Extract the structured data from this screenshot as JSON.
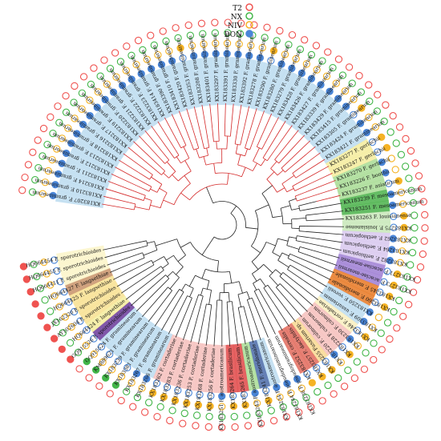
{
  "legend": {
    "items": [
      {
        "label": "T2",
        "color": "#ef5350"
      },
      {
        "label": "NX",
        "color": "#43b649"
      },
      {
        "label": "NIV",
        "color": "#f5b325"
      },
      {
        "label": "DON",
        "color": "#4a86d8"
      }
    ]
  },
  "colors": {
    "T2": "#ef5350",
    "NX": "#43b649",
    "NIV": "#f5b325",
    "DON": "#4a86d8",
    "red_branch": "#d42828",
    "black_branch": "#222222"
  },
  "taxa": [
    {
      "label": "KX183207 F. graminearum",
      "bg": "#bcdcf0",
      "branch": "red",
      "toxins": [
        0,
        0,
        0,
        1
      ]
    },
    {
      "label": "KX183210 F. graminearum",
      "bg": "#bcdcf0",
      "branch": "red",
      "toxins": [
        0,
        0,
        0,
        1
      ]
    },
    {
      "label": "KX183214 F. graminearum",
      "bg": "#bcdcf0",
      "branch": "red",
      "toxins": [
        0,
        0,
        0,
        1
      ]
    },
    {
      "label": "KX183211 F. graminearum",
      "bg": "#bcdcf0",
      "branch": "red",
      "toxins": [
        0,
        0,
        0,
        1
      ]
    },
    {
      "label": "KX183212 F. graminearum",
      "bg": "#bcdcf0",
      "branch": "red",
      "toxins": [
        0,
        0,
        0,
        1
      ]
    },
    {
      "label": "KX183213 F. graminearum",
      "bg": "#bcdcf0",
      "branch": "red",
      "toxins": [
        0,
        0,
        0,
        1
      ]
    },
    {
      "label": "KX183218 F. graminearum",
      "bg": "#bcdcf0",
      "branch": "red",
      "toxins": [
        0,
        0,
        0,
        1
      ]
    },
    {
      "label": "KX183216 F. graminearum",
      "bg": "#bcdcf0",
      "branch": "red",
      "toxins": [
        0,
        0,
        0,
        1
      ]
    },
    {
      "label": "KX183217 F. graminearum",
      "bg": "#bcdcf0",
      "branch": "red",
      "toxins": [
        0,
        0,
        0,
        1
      ]
    },
    {
      "label": "KX183219 F. graminearum",
      "bg": "#bcdcf0",
      "branch": "red",
      "toxins": [
        0,
        0,
        0,
        1
      ]
    },
    {
      "label": "KX183220 F. graminearum",
      "bg": "#bcdcf0",
      "branch": "red",
      "toxins": [
        0,
        0,
        0,
        1
      ]
    },
    {
      "label": "KX183221 F. graminearum",
      "bg": "#bcdcf0",
      "branch": "red",
      "toxins": [
        0,
        0,
        0,
        1
      ]
    },
    {
      "label": "KX183222 F. graminearum",
      "bg": "#bcdcf0",
      "branch": "red",
      "toxins": [
        0,
        0,
        0,
        1
      ]
    },
    {
      "label": "KX183223 F. graminearum",
      "bg": "#bcdcf0",
      "branch": "red",
      "toxins": [
        0,
        0,
        0,
        1
      ]
    },
    {
      "label": "KX183414 F. graminearum",
      "bg": "#bcdcf0",
      "branch": "red",
      "toxins": [
        0,
        0,
        0,
        1
      ]
    },
    {
      "label": "KX183390 F. graminearum",
      "bg": "#bcdcf0",
      "branch": "red",
      "toxins": [
        0,
        0,
        0,
        1
      ]
    },
    {
      "label": "KX183410 F. graminearum",
      "bg": "#bcdcf0",
      "branch": "red",
      "toxins": [
        0,
        0,
        0,
        1
      ]
    },
    {
      "label": "KX183420 F. graminearum",
      "bg": "#bcdcf0",
      "branch": "red",
      "toxins": [
        0,
        0,
        0,
        1
      ]
    },
    {
      "label": "KX183353 F. graminearum",
      "bg": "#bcdcf0",
      "branch": "red",
      "toxins": [
        0,
        0,
        1,
        0
      ]
    },
    {
      "label": "KX183208 F. graminearum",
      "bg": "#bcdcf0",
      "branch": "red",
      "toxins": [
        0,
        0,
        0,
        1
      ]
    },
    {
      "label": "KX183401 F. graminearum",
      "bg": "#bcdcf0",
      "branch": "red",
      "toxins": [
        0,
        0,
        0,
        1
      ]
    },
    {
      "label": "KX183297 F. graminearum",
      "bg": "#bcdcf0",
      "branch": "red",
      "toxins": [
        0,
        0,
        0,
        1
      ]
    },
    {
      "label": "KX183391 F. graminearum",
      "bg": "#bcdcf0",
      "branch": "red",
      "toxins": [
        0,
        0,
        0,
        1
      ]
    },
    {
      "label": "KX183330 F. graminearum",
      "bg": "#bcdcf0",
      "branch": "red",
      "toxins": [
        0,
        0,
        0,
        1
      ]
    },
    {
      "label": "KX183392 F. graminearum",
      "bg": "#bcdcf0",
      "branch": "red",
      "toxins": [
        0,
        0,
        0,
        1
      ]
    },
    {
      "label": "KX183278 F. graminearum",
      "bg": "#bcdcf0",
      "branch": "red",
      "toxins": [
        0,
        0,
        0,
        1
      ]
    },
    {
      "label": "KX183290 F. graminearum",
      "bg": "#bcdcf0",
      "branch": "red",
      "toxins": [
        0,
        0,
        1,
        0
      ]
    },
    {
      "label": "KX183280 F. graminearum",
      "bg": "#bcdcf0",
      "branch": "red",
      "toxins": [
        0,
        0,
        0,
        1
      ]
    },
    {
      "label": "KX183279 F. graminearum",
      "bg": "#bcdcf0",
      "branch": "red",
      "toxins": [
        0,
        0,
        0,
        1
      ]
    },
    {
      "label": "KX183428 F. graminearum",
      "bg": "#bcdcf0",
      "branch": "red",
      "toxins": [
        0,
        0,
        0,
        1
      ]
    },
    {
      "label": "KX183426 F. graminearum",
      "bg": "#bcdcf0",
      "branch": "red",
      "toxins": [
        0,
        0,
        0,
        1
      ]
    },
    {
      "label": "KX183427 F. graminearum",
      "bg": "#bcdcf0",
      "branch": "red",
      "toxins": [
        0,
        0,
        0,
        1
      ]
    },
    {
      "label": "KX183339 F. graminearum",
      "bg": "#bcdcf0",
      "branch": "red",
      "toxins": [
        0,
        0,
        0,
        1
      ]
    },
    {
      "label": "KX183429 F. graminearum",
      "bg": "#bcdcf0",
      "branch": "red",
      "toxins": [
        0,
        0,
        0,
        1
      ]
    },
    {
      "label": "KX183415 F. graminearum",
      "bg": "#bcdcf0",
      "branch": "red",
      "toxins": [
        0,
        0,
        0,
        1
      ]
    },
    {
      "label": "KX183305 F. graminearum",
      "bg": "#bcdcf0",
      "branch": "red",
      "toxins": [
        0,
        0,
        1,
        0
      ]
    },
    {
      "label": "KX183424 F. graminearum",
      "bg": "#bcdcf0",
      "branch": "red",
      "toxins": [
        0,
        0,
        0,
        1
      ]
    },
    {
      "label": "KX183421 F. graminearum",
      "bg": "#bcdcf0",
      "branch": "red",
      "toxins": [
        0,
        0,
        0,
        1
      ]
    },
    {
      "label": "KX183277 F. gerlachii",
      "bg": "#f4ec9c",
      "branch": "red",
      "toxins": [
        0,
        0,
        1,
        0
      ]
    },
    {
      "label": "KX183247 F. gerlachii",
      "bg": "#f4ec9c",
      "branch": "red",
      "toxins": [
        0,
        0,
        1,
        0
      ]
    },
    {
      "label": "KX183270 F. gerlachii",
      "bg": "#a8dc94",
      "branch": "red",
      "toxins": [
        0,
        0,
        0,
        1
      ]
    },
    {
      "label": "KX183226 F. boothii",
      "bg": "#a8dc94",
      "branch": "red",
      "toxins": [
        0,
        0,
        0,
        1
      ]
    },
    {
      "label": "KX183237 F. asiaticum",
      "bg": "#a8dc94",
      "branch": "red",
      "toxins": [
        0,
        0,
        1,
        0
      ]
    },
    {
      "label": "KX183239 F. mesoamericanum",
      "bg": "#4ab24a",
      "branch": "black",
      "toxins": [
        0,
        0,
        0,
        1
      ]
    },
    {
      "label": "KX183251 F. mesoamericanum",
      "bg": "#4ab24a",
      "branch": "black",
      "toxins": [
        0,
        0,
        0,
        1
      ]
    },
    {
      "label": "KX183263 F. louisianense",
      "bg": "#c8e8b8",
      "branch": "black",
      "toxins": [
        0,
        0,
        1,
        0
      ]
    },
    {
      "label": "KX183275 F. louisianense",
      "bg": "#c8e8b8",
      "branch": "black",
      "toxins": [
        0,
        0,
        1,
        0
      ]
    },
    {
      "label": "KX183262 F. aethiopicum",
      "bg": "#d8c8ee",
      "branch": "black",
      "toxins": [
        0,
        0,
        0,
        1
      ]
    },
    {
      "label": "KX183264 F. aethiopicum",
      "bg": "#d8c8ee",
      "branch": "black",
      "toxins": [
        0,
        0,
        0,
        1
      ]
    },
    {
      "label": "KX183282 F. aethiopicum",
      "bg": "#d8c8ee",
      "branch": "black",
      "toxins": [
        0,
        0,
        0,
        1
      ]
    },
    {
      "label": "KX183271 F. acaciae-mearnsii",
      "bg": "#9e7ed4",
      "branch": "black",
      "toxins": [
        0,
        0,
        1,
        0
      ]
    },
    {
      "label": "KX183273 F. acaciae-mearnsii",
      "bg": "#9e7ed4",
      "branch": "black",
      "toxins": [
        0,
        0,
        1,
        0
      ]
    },
    {
      "label": "KX183245 F. meridionale",
      "bg": "#e87822",
      "branch": "black",
      "toxins": [
        0,
        0,
        1,
        0
      ]
    },
    {
      "label": "KX183260 F. meridionale",
      "bg": "#e87822",
      "branch": "black",
      "toxins": [
        0,
        0,
        1,
        0
      ]
    },
    {
      "label": "KX183250 F. vorosii",
      "bg": "#bcdcf0",
      "branch": "black",
      "toxins": [
        0,
        0,
        0,
        1
      ]
    },
    {
      "label": "KX183309 F. ussurianum",
      "bg": "#bcdcf0",
      "branch": "black",
      "toxins": [
        0,
        0,
        0,
        1
      ]
    },
    {
      "label": "KX183246 F. cortaderiae",
      "bg": "#f9efbe",
      "branch": "black",
      "toxins": [
        0,
        0,
        1,
        0
      ]
    },
    {
      "label": "KX183230 F. culmorum",
      "bg": "#f6c0bc",
      "branch": "black",
      "toxins": [
        0,
        0,
        0,
        1
      ]
    },
    {
      "label": "KX183228 F. culmorum",
      "bg": "#f6c0bc",
      "branch": "black",
      "toxins": [
        0,
        0,
        1,
        0
      ]
    },
    {
      "label": "KX183220 F. culmorum",
      "bg": "#f6c0bc",
      "branch": "black",
      "toxins": [
        0,
        0,
        0,
        1
      ]
    },
    {
      "label": "KX183255 Fusarium sp.",
      "bg": "#f8d890",
      "branch": "black",
      "toxins": [
        0,
        0,
        1,
        0
      ]
    },
    {
      "label": "KX183257 F. dactylidis",
      "bg": "#e26a5c",
      "branch": "black",
      "toxins": [
        0,
        0,
        1,
        0
      ]
    },
    {
      "label": "KX183252 F. cerealis",
      "bg": "#e26a5c",
      "branch": "black",
      "toxins": [
        0,
        0,
        1,
        0
      ]
    },
    {
      "label": "KX183238 F. pseudograminearum",
      "bg": "#ffffff",
      "branch": "black",
      "toxins": [
        0,
        0,
        0,
        1
      ]
    },
    {
      "label": "KX183244 F. pseudograminearum",
      "bg": "#ffffff",
      "branch": "black",
      "toxins": [
        0,
        0,
        0,
        1
      ]
    },
    {
      "label": "KX183234 F. austroamericanum",
      "bg": "#bcdcf0",
      "branch": "black",
      "toxins": [
        0,
        0,
        0,
        1
      ]
    },
    {
      "label": "KX183241 F. meridionale",
      "bg": "#4a6aa8",
      "branch": "black",
      "toxins": [
        0,
        0,
        1,
        0
      ]
    },
    {
      "label": "KX183243 F. austroamericanum",
      "bg": "#a8dc94",
      "branch": "black",
      "toxins": [
        0,
        0,
        0,
        1
      ]
    },
    {
      "label": "KX183265 F. brasilicum",
      "bg": "#e04848",
      "branch": "black",
      "toxins": [
        0,
        0,
        1,
        0
      ]
    },
    {
      "label": "KX183264 F. brasilicum",
      "bg": "#e04848",
      "branch": "black",
      "toxins": [
        0,
        0,
        1,
        0
      ]
    },
    {
      "label": "KX183251 F. austroamericanum",
      "bg": "#f6c0bc",
      "branch": "black",
      "toxins": [
        0,
        0,
        0,
        1
      ]
    },
    {
      "label": "KX183256 F. cortaderiae",
      "bg": "#f6c0bc",
      "branch": "black",
      "toxins": [
        0,
        0,
        1,
        0
      ]
    },
    {
      "label": "KX183268 F. cortaderiae",
      "bg": "#f6c0bc",
      "branch": "black",
      "toxins": [
        0,
        0,
        1,
        0
      ]
    },
    {
      "label": "KX183253 F. cortaderiae",
      "bg": "#f6c0bc",
      "branch": "black",
      "toxins": [
        0,
        0,
        1,
        0
      ]
    },
    {
      "label": "KX183236 F. cortaderiae",
      "bg": "#f6c0bc",
      "branch": "black",
      "toxins": [
        0,
        0,
        1,
        0
      ]
    },
    {
      "label": "KX183283 F. cortaderiae",
      "bg": "#f6c0bc",
      "branch": "black",
      "toxins": [
        0,
        0,
        1,
        0
      ]
    },
    {
      "label": "KX183262 F. cortaderiae",
      "bg": "#f6c0bc",
      "branch": "black",
      "toxins": [
        0,
        0,
        1,
        0
      ]
    },
    {
      "label": "KX183266 F. graminearum",
      "bg": "#bcdcf0",
      "branch": "black",
      "toxins": [
        0,
        0,
        0,
        1
      ]
    },
    {
      "label": "KX183267 F. graminearum",
      "bg": "#bcdcf0",
      "branch": "black",
      "toxins": [
        0,
        0,
        0,
        1
      ]
    },
    {
      "label": "KX183381 F. graminearum",
      "bg": "#bcdcf0",
      "branch": "black",
      "toxins": [
        0,
        1,
        0,
        0
      ]
    },
    {
      "label": "KX183239 F. graminearum",
      "bg": "#bcdcf0",
      "branch": "black",
      "toxins": [
        0,
        1,
        0,
        0
      ]
    },
    {
      "label": "KM889621 F. graminearum",
      "bg": "#bcdcf0",
      "branch": "black",
      "toxins": [
        0,
        1,
        0,
        0
      ]
    },
    {
      "label": "GQ915524 F. graminearum",
      "bg": "#bcdcf0",
      "branch": "black",
      "toxins": [
        0,
        1,
        0,
        0
      ]
    },
    {
      "label": "GQ915526 F. sporotrichioides",
      "bg": "#6a3a9a",
      "branch": "black",
      "toxins": [
        1,
        0,
        0,
        0
      ]
    },
    {
      "label": "HQ664424 F. langsethiae",
      "bg": "#f4ec9c",
      "branch": "black",
      "toxins": [
        1,
        0,
        0,
        0
      ]
    },
    {
      "label": "AY102604 F. sporotrichioides",
      "bg": "#f8e090",
      "branch": "black",
      "toxins": [
        1,
        0,
        0,
        0
      ]
    },
    {
      "label": "JX162320 F. sporotrichioides",
      "bg": "#f8e090",
      "branch": "black",
      "toxins": [
        1,
        0,
        0,
        0
      ]
    },
    {
      "label": "HQ664425 F. langsethiae",
      "bg": "#f8e090",
      "branch": "black",
      "toxins": [
        1,
        0,
        0,
        0
      ]
    },
    {
      "label": "HQ664427 F. langsethiae",
      "bg": "#c89268",
      "branch": "black",
      "toxins": [
        1,
        0,
        0,
        0
      ]
    },
    {
      "label": "HQ664411 F. sporotrichioides",
      "bg": "#fcf4c8",
      "branch": "black",
      "toxins": [
        1,
        0,
        0,
        0
      ]
    },
    {
      "label": "HQ664455 F. sporotrichioides",
      "bg": "#fcf4c8",
      "branch": "black",
      "toxins": [
        1,
        0,
        0,
        0
      ]
    },
    {
      "label": "HQ664454 F. sporotrichioides",
      "bg": "#fcf4c8",
      "branch": "black",
      "toxins": [
        1,
        0,
        0,
        0
      ]
    }
  ]
}
